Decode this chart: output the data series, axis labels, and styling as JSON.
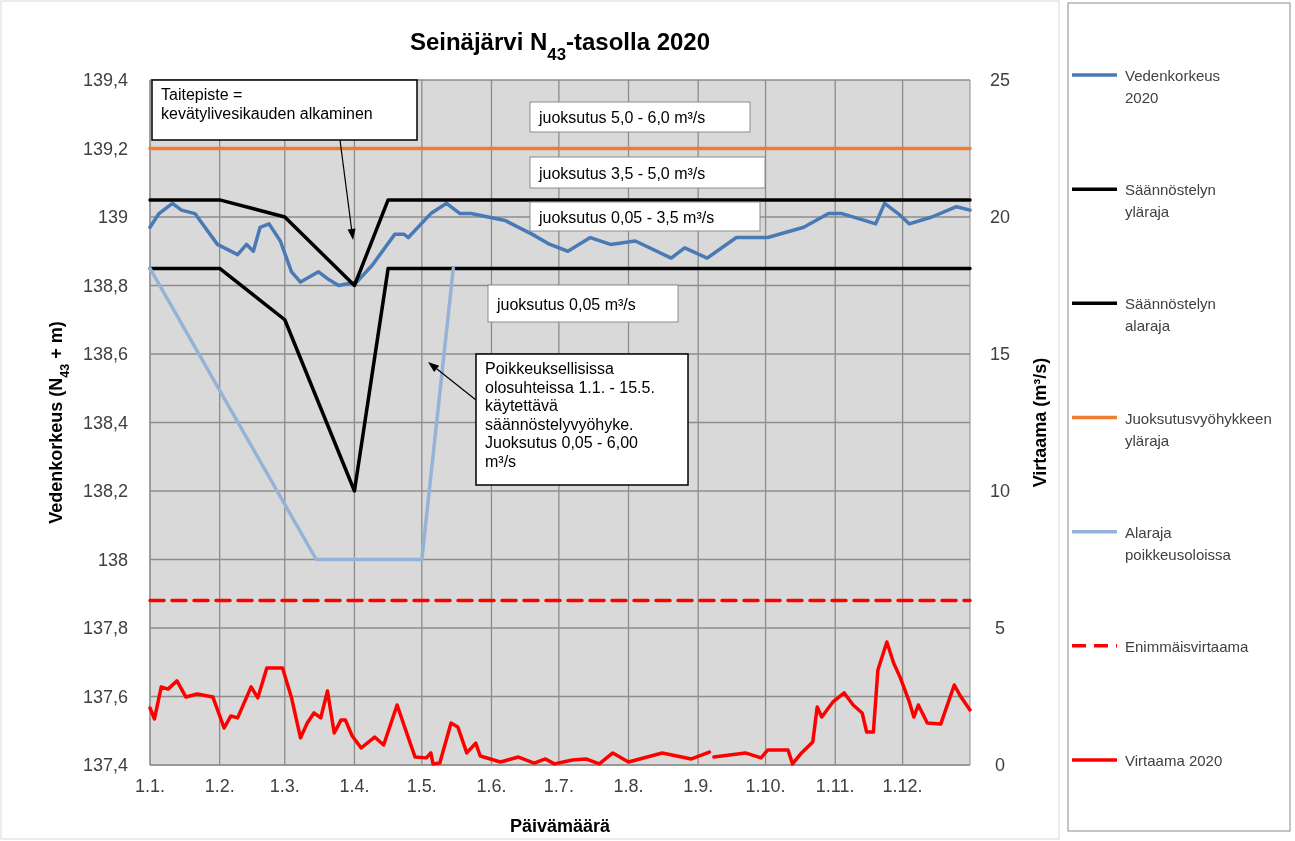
{
  "chart_data": {
    "type": "line",
    "title": "Seinäjärvi N$_{43}$-tasolla 2020",
    "xlabel": "Päivämäärä",
    "ylabel": "Vedenkorkeus (N$_{43}$ + m)",
    "y2label": "Virtaama (m³/s)",
    "xlim": [
      "2020-01-01",
      "2020-12-31"
    ],
    "xticks": [
      {
        "value": "2020-01-01",
        "label": "1.1."
      },
      {
        "value": "2020-02-01",
        "label": "1.2."
      },
      {
        "value": "2020-03-01",
        "label": "1.3."
      },
      {
        "value": "2020-04-01",
        "label": "1.4."
      },
      {
        "value": "2020-05-01",
        "label": "1.5."
      },
      {
        "value": "2020-06-01",
        "label": "1.6."
      },
      {
        "value": "2020-07-01",
        "label": "1.7."
      },
      {
        "value": "2020-08-01",
        "label": "1.8."
      },
      {
        "value": "2020-09-01",
        "label": "1.9."
      },
      {
        "value": "2020-10-01",
        "label": "1.10."
      },
      {
        "value": "2020-11-01",
        "label": "1.11."
      },
      {
        "value": "2020-12-01",
        "label": "1.12."
      }
    ],
    "ylim": [
      137.4,
      139.4
    ],
    "yticks": [
      {
        "value": 137.4,
        "label": "137,4"
      },
      {
        "value": 137.6,
        "label": "137,6"
      },
      {
        "value": 137.8,
        "label": "137,8"
      },
      138,
      {
        "value": 138.2,
        "label": "138,2"
      },
      {
        "value": 138.4,
        "label": "138,4"
      },
      {
        "value": 138.6,
        "label": "138,6"
      },
      {
        "value": 138.8,
        "label": "138,8"
      },
      139,
      {
        "value": 139.2,
        "label": "139,2"
      },
      {
        "value": 139.4,
        "label": "139,4"
      }
    ],
    "y2lim": [
      0,
      25
    ],
    "y2ticks": [
      0,
      5,
      10,
      15,
      20,
      25
    ],
    "grid": true,
    "legend": "right",
    "marker": "none",
    "line_style": "solid",
    "series": [
      {
        "name": "Vedenkorkeus 2020",
        "color": "#4a7ab5",
        "x": [
          "2020-01-01",
          "2020-01-05",
          "2020-01-11",
          "2020-01-15",
          "2020-01-21",
          "2020-01-31",
          "2020-02-09",
          "2020-02-13",
          "2020-02-16",
          "2020-02-19",
          "2020-02-23",
          "2020-02-28",
          "2020-03-04",
          "2020-03-08",
          "2020-03-16",
          "2020-03-20",
          "2020-03-25",
          "2020-04-02",
          "2020-04-09",
          "2020-04-19",
          "2020-04-23",
          "2020-04-25",
          "2020-05-05",
          "2020-05-12",
          "2020-05-18",
          "2020-05-23",
          "2020-06-07",
          "2020-06-19",
          "2020-06-27",
          "2020-07-05",
          "2020-07-15",
          "2020-07-24",
          "2020-08-04",
          "2020-08-20",
          "2020-08-26",
          "2020-09-05",
          "2020-09-18",
          "2020-10-02",
          "2020-10-18",
          "2020-10-29",
          "2020-11-04",
          "2020-11-14",
          "2020-11-19",
          "2020-11-23",
          "2020-11-29",
          "2020-12-04",
          "2020-12-14",
          "2020-12-25",
          "2020-12-31"
        ],
        "values": [
          138.97,
          139.01,
          139.04,
          139.02,
          139.01,
          138.92,
          138.89,
          138.92,
          138.9,
          138.97,
          138.98,
          138.93,
          138.84,
          138.81,
          138.84,
          138.82,
          138.8,
          138.81,
          138.86,
          138.95,
          138.95,
          138.94,
          139.01,
          139.04,
          139.01,
          139.01,
          138.99,
          138.95,
          138.92,
          138.9,
          138.94,
          138.92,
          138.93,
          138.88,
          138.91,
          138.88,
          138.94,
          138.94,
          138.97,
          139.01,
          139.01,
          138.99,
          138.98,
          139.04,
          139.01,
          138.98,
          139.0,
          139.03,
          139.02
        ]
      },
      {
        "name": "Säännöstelyn yläraja",
        "color": "#000000",
        "x": [
          "2020-01-01",
          "2020-02-01",
          "2020-03-01",
          "2020-04-01",
          "2020-04-16",
          "2020-12-31"
        ],
        "values": [
          139.05,
          139.05,
          139.0,
          138.8,
          139.05,
          139.05
        ]
      },
      {
        "name": "Säännöstelyn alaraja",
        "color": "#000000",
        "x": [
          "2020-01-01",
          "2020-02-01",
          "2020-03-01",
          "2020-04-01",
          "2020-04-16",
          "2020-12-31"
        ],
        "values": [
          138.85,
          138.85,
          138.7,
          138.2,
          138.85,
          138.85
        ]
      },
      {
        "name": "Juoksutusvyöhykkeen yläraja",
        "color": "#ed7d31",
        "x": [
          "2020-01-01",
          "2020-12-31"
        ],
        "values": [
          139.2,
          139.2
        ]
      },
      {
        "name": "Alaraja poikkeusoloissa",
        "color": "#95b3d7",
        "x": [
          "2020-01-01",
          "2020-03-15",
          "2020-05-01",
          "2020-05-15"
        ],
        "values": [
          138.85,
          138.0,
          138.0,
          138.85
        ]
      },
      {
        "name": "Enimmäisvirtaama",
        "color": "#ff0000",
        "axis": "y2",
        "line_style": "dashed",
        "x": [
          "2020-01-01",
          "2020-12-31"
        ],
        "values": [
          6,
          6
        ]
      },
      {
        "name": "Virtaama 2020",
        "color": "#ff0000",
        "axis": "y2",
        "x": [
          "2020-01-01",
          "2020-01-03",
          "2020-01-06",
          "2020-01-09",
          "2020-01-13",
          "2020-01-17",
          "2020-01-22",
          "2020-01-29",
          "2020-02-03",
          "2020-02-06",
          "2020-02-09",
          "2020-02-15",
          "2020-02-18",
          "2020-02-22",
          "2020-02-29",
          "2020-03-04",
          "2020-03-08",
          "2020-03-11",
          "2020-03-14",
          "2020-03-17",
          "2020-03-20",
          "2020-03-23",
          "2020-03-26",
          "2020-03-28",
          "2020-03-31",
          "2020-04-04",
          "2020-04-10",
          "2020-04-14",
          "2020-04-20",
          "2020-04-25",
          "2020-04-28",
          "2020-05-03",
          "2020-05-05",
          "2020-05-06",
          "2020-05-09",
          "2020-05-14",
          "2020-05-17",
          "2020-05-21",
          "2020-05-25",
          "2020-05-27",
          "2020-06-05",
          "2020-06-13",
          "2020-06-20",
          "2020-06-25",
          "2020-06-29",
          "2020-07-07",
          "2020-07-13",
          "2020-07-19",
          "2020-07-25",
          "2020-08-01",
          "2020-08-16",
          "2020-08-29",
          "2020-09-06",
          "2020-09-07",
          "2020-09-08",
          "2020-09-22",
          "2020-09-29",
          "2020-10-02",
          "2020-10-11",
          "2020-10-13",
          "2020-10-17",
          "2020-10-22",
          "2020-10-24",
          "2020-10-26",
          "2020-10-31",
          "2020-11-05",
          "2020-11-09",
          "2020-11-13",
          "2020-11-15",
          "2020-11-18",
          "2020-11-20",
          "2020-11-24",
          "2020-11-27",
          "2020-11-30",
          "2020-12-04",
          "2020-12-06",
          "2020-12-08",
          "2020-12-12",
          "2020-12-18",
          "2020-12-24",
          "2020-12-27",
          "2020-12-31"
        ],
        "values": [
          2.08,
          1.68,
          2.85,
          2.77,
          3.07,
          2.48,
          2.59,
          2.48,
          1.35,
          1.79,
          1.72,
          2.85,
          2.45,
          3.54,
          3.54,
          2.45,
          0.99,
          1.53,
          1.9,
          1.72,
          2.7,
          1.17,
          1.64,
          1.64,
          1.06,
          0.62,
          1.02,
          0.73,
          2.19,
          0.99,
          0.29,
          0.26,
          0.44,
          0.04,
          0.07,
          1.53,
          1.39,
          0.44,
          0.8,
          0.33,
          0.11,
          0.29,
          0.07,
          0.22,
          0.04,
          0.18,
          0.22,
          0.04,
          0.44,
          0.11,
          0.44,
          0.22,
          0.47,
          null,
          0.29,
          0.44,
          0.26,
          0.55,
          0.55,
          0.04,
          0.44,
          0.84,
          2.12,
          1.75,
          2.3,
          2.63,
          2.19,
          1.9,
          1.2,
          1.2,
          3.47,
          4.49,
          3.72,
          3.18,
          2.3,
          1.75,
          2.19,
          1.53,
          1.5,
          2.92,
          2.48,
          2.01
        ]
      }
    ],
    "annotations": [
      "Taitepiste =\nkevätylivesikauden alkaminen",
      "juoksutus 5,0 - 6,0 m³/s",
      "juoksutus 3,5 - 5,0 m³/s",
      "juoksutus 0,05 - 3,5 m³/s",
      "juoksutus 0,05 m³/s",
      "Poikkeuksellisissa\nolosuhteissa 1.1. - 15.5.\nkäytettävä\nsäännöstelyvyöhyke.\nJuoksutus 0,05 - 6,00\nm³/s"
    ]
  }
}
